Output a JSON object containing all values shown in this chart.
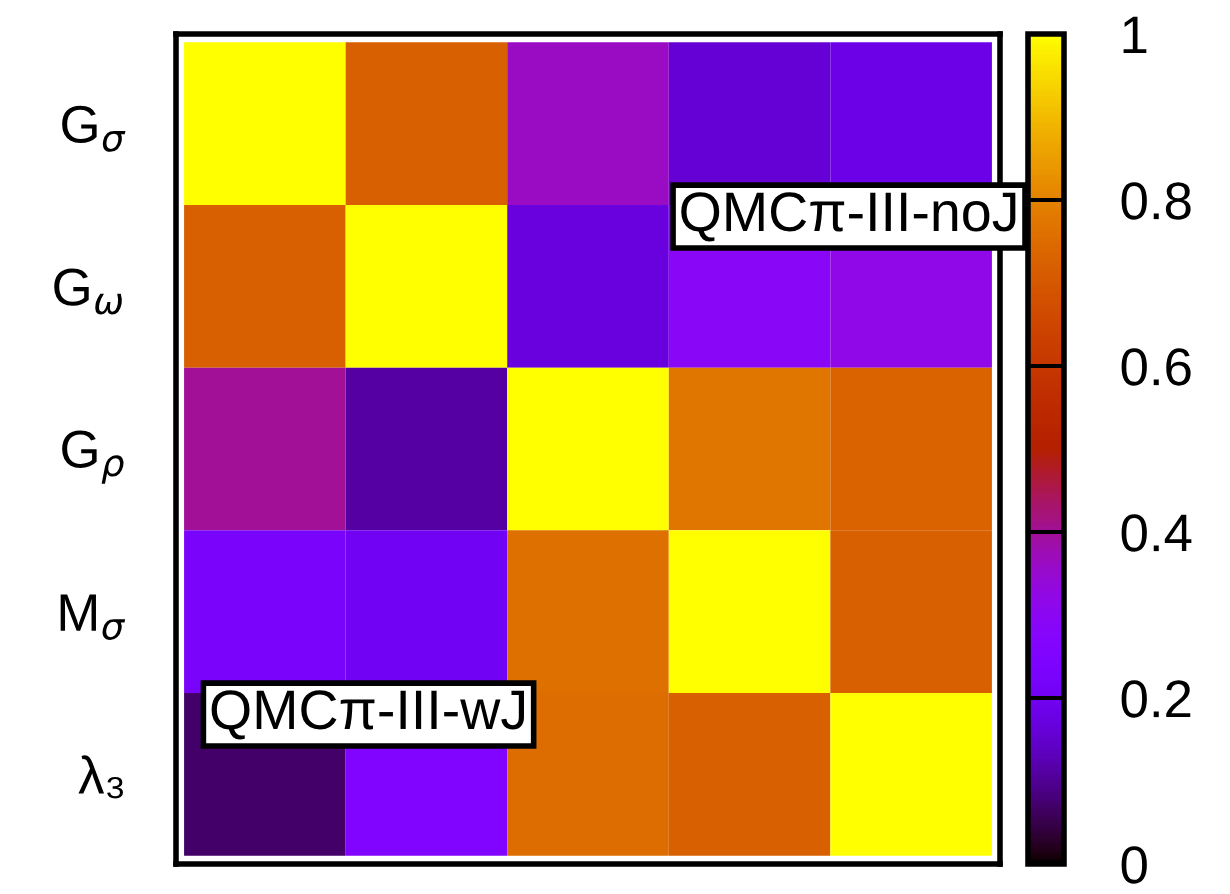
{
  "chart_data": {
    "type": "heatmap",
    "categories": [
      null,
      null,
      null,
      null,
      null
    ],
    "y_categories": [
      "G$_{σ}$",
      "G$_{ω}$",
      "G$_{ρ}$",
      "M$_{σ}$",
      "λ₃"
    ],
    "cells": [
      [
        1,
        0.72,
        0.36,
        0.16,
        0.18
      ],
      [
        0.72,
        1,
        0.17,
        0.29,
        0.32
      ],
      [
        0.4,
        0.11,
        1,
        0.77,
        0.73
      ],
      [
        0.23,
        0.2,
        0.76,
        1,
        0.72
      ],
      [
        0.07,
        0.25,
        0.75,
        0.72,
        1
      ]
    ],
    "clim": [
      0,
      1
    ],
    "cticks": [
      0,
      0.2,
      0.4,
      0.6,
      0.8,
      1
    ],
    "annotations": [
      "QMCπ-III-noJ",
      "QMCπ-III-wJ"
    ],
    "tick_labels": "y"
  }
}
